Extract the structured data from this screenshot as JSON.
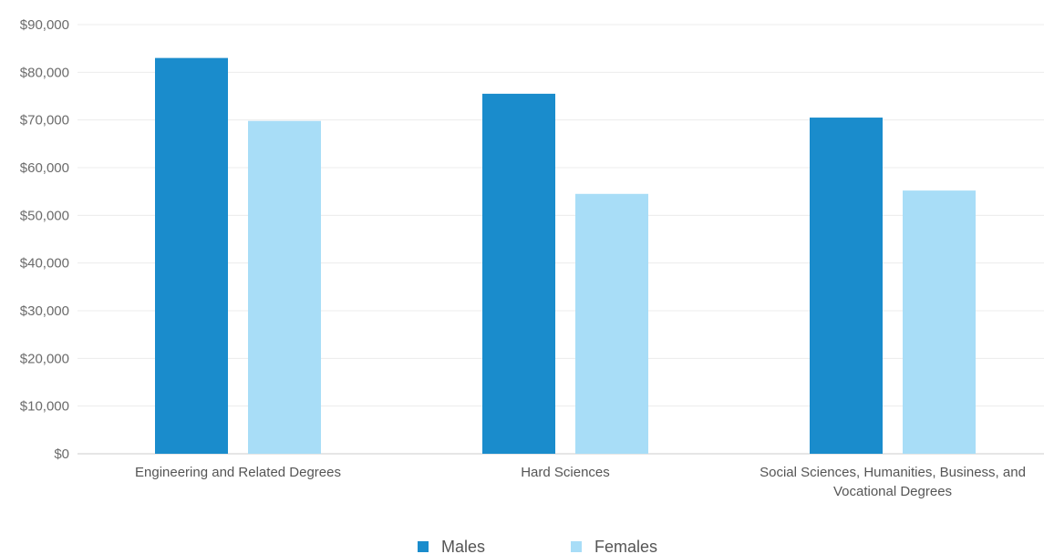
{
  "chart_data": {
    "type": "bar",
    "categories": [
      [
        "Engineering and Related Degrees"
      ],
      [
        "Hard Sciences"
      ],
      [
        "Social Sciences, Humanities, Business, and",
        "Vocational Degrees"
      ]
    ],
    "series": [
      {
        "name": "Males",
        "color": "#1a8ccc",
        "values": [
          83000,
          75500,
          70500
        ]
      },
      {
        "name": "Females",
        "color": "#a8ddf7",
        "values": [
          69800,
          54500,
          55200
        ]
      }
    ],
    "yticks": [
      "$0",
      "$10,000",
      "$20,000",
      "$30,000",
      "$40,000",
      "$50,000",
      "$60,000",
      "$70,000",
      "$80,000",
      "$90,000"
    ],
    "ylim": [
      0,
      90000
    ],
    "grid": true,
    "legend_position": "bottom",
    "title": "",
    "xlabel": "",
    "ylabel": ""
  },
  "colors": {
    "grid": "#ececec",
    "axis": "#cccccc"
  }
}
